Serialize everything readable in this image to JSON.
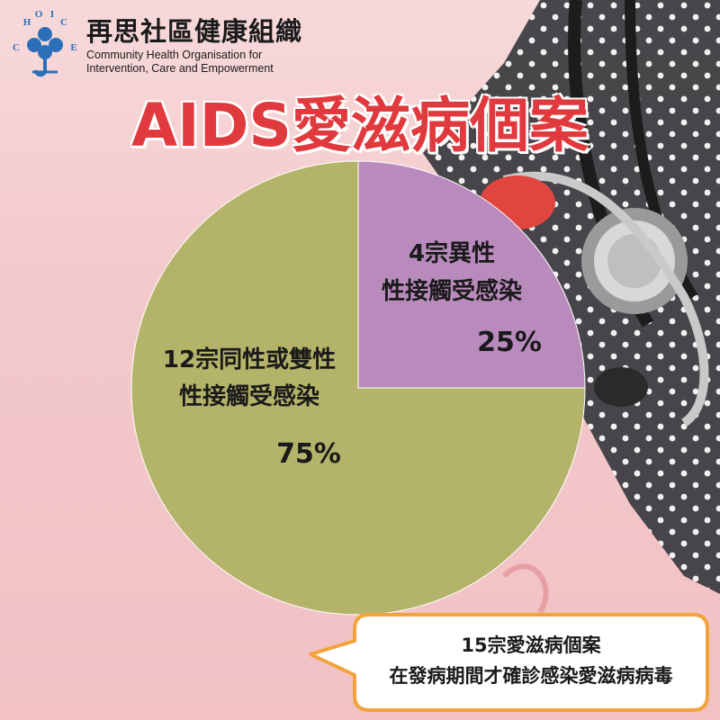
{
  "org": {
    "logo_letters": [
      "C",
      "H",
      "O",
      "I",
      "C",
      "E"
    ],
    "name_zh": "再思社區健康組織",
    "name_en_line1": "Community Health Organisation for",
    "name_en_line2": "Intervention, Care and Empowerment"
  },
  "title": "AIDS愛滋病個案",
  "chart_data": {
    "type": "pie",
    "title": "AIDS愛滋病個案",
    "slices": [
      {
        "label_line1": "4宗異性",
        "label_line2": "性接觸受感染",
        "value": 4,
        "percent_label": "25%",
        "color": "#b98bbd"
      },
      {
        "label_line1": "12宗同性或雙性",
        "label_line2": "性接觸受感染",
        "value": 12,
        "percent_label": "75%",
        "color": "#b4b36a"
      }
    ]
  },
  "callout": {
    "line1": "15宗愛滋病個案",
    "line2": "在發病期間才確診感染愛滋病病毒"
  },
  "colors": {
    "title_red": "#e03a3e",
    "logo_blue": "#2a6fb8",
    "callout_border": "#f2a33c"
  }
}
